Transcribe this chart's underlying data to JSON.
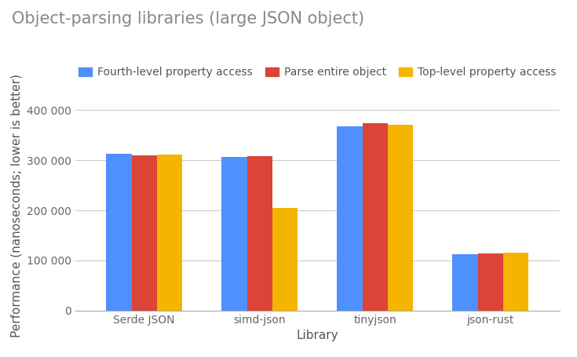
{
  "title": "Object-parsing libraries (large JSON object)",
  "xlabel": "Library",
  "ylabel": "Performance (nanoseconds; lower is better)",
  "categories": [
    "Serde JSON",
    "simd-json",
    "tinyjson",
    "json-rust"
  ],
  "series": [
    {
      "name": "Fourth-level property access",
      "color": "#4d90fe",
      "values": [
        312000,
        306000,
        368000,
        112000
      ]
    },
    {
      "name": "Parse entire object",
      "color": "#db4437",
      "values": [
        310000,
        308000,
        374000,
        114000
      ]
    },
    {
      "name": "Top-level property access",
      "color": "#f4b400",
      "values": [
        311000,
        204000,
        370000,
        115000
      ]
    }
  ],
  "ylim": [
    0,
    420000
  ],
  "yticks": [
    0,
    100000,
    200000,
    300000,
    400000
  ],
  "ytick_labels": [
    "0",
    "100 000",
    "200 000",
    "300 000",
    "400 000"
  ],
  "background_color": "#ffffff",
  "grid_color": "#cccccc",
  "title_color": "#888888",
  "title_fontsize": 15,
  "axis_label_fontsize": 11,
  "tick_label_fontsize": 10,
  "legend_fontsize": 10,
  "bar_width": 0.22
}
